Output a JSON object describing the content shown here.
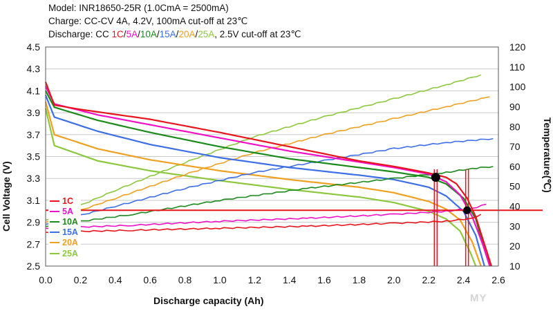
{
  "header": {
    "line1": "Model: INR18650-25R (1.0CmA = 2500mA)",
    "line2": "Charge: CC-CV 4A, 4.2V, 100mA cut-off at 23℃",
    "line3_prefix": "Discharge: CC ",
    "line3_suffix": ", 2.5V cut-off at 23℃",
    "rates": [
      "1C",
      "5A",
      "10A",
      "15A",
      "20A",
      "25A"
    ],
    "separator": "/"
  },
  "watermark": "MY",
  "colors": {
    "1C": "#e8141c",
    "5A": "#f010c8",
    "10A": "#1a8a1a",
    "15A": "#3c6ee6",
    "20A": "#f0a020",
    "25A": "#8cc83c"
  },
  "chart_data": {
    "type": "line",
    "xlabel": "Discharge capacity (Ah)",
    "ylabel": "Cell Voltage (V)",
    "y2label": "Temperature(℃)",
    "xlim": [
      0,
      2.6
    ],
    "ylim": [
      2.5,
      4.5
    ],
    "y2lim": [
      10,
      120
    ],
    "x_ticks": [
      "0.0",
      "0.2",
      "0.4",
      "0.6",
      "0.8",
      "1.0",
      "1.2",
      "1.4",
      "1.6",
      "1.8",
      "2.0",
      "2.2",
      "2.4",
      "2.6"
    ],
    "y_ticks": [
      "2.5",
      "2.7",
      "2.9",
      "3.1",
      "3.3",
      "3.5",
      "3.7",
      "3.9",
      "4.1",
      "4.3",
      "4.5"
    ],
    "y2_ticks": [
      "10",
      "20",
      "30",
      "40",
      "50",
      "60",
      "70",
      "80",
      "90",
      "100",
      "110",
      "120"
    ],
    "legend": [
      "1C",
      "5A",
      "10A",
      "15A",
      "20A",
      "25A"
    ],
    "legend_position": "bottom-left",
    "series": [
      {
        "name": "1C",
        "color": "#e8141c",
        "voltage": [
          [
            0,
            4.18
          ],
          [
            0.05,
            3.97
          ],
          [
            0.2,
            3.93
          ],
          [
            0.6,
            3.84
          ],
          [
            1.0,
            3.72
          ],
          [
            1.4,
            3.59
          ],
          [
            1.8,
            3.46
          ],
          [
            2.0,
            3.41
          ],
          [
            2.2,
            3.35
          ],
          [
            2.3,
            3.31
          ],
          [
            2.36,
            3.25
          ],
          [
            2.42,
            3.12
          ],
          [
            2.47,
            2.95
          ],
          [
            2.52,
            2.7
          ],
          [
            2.56,
            2.5
          ]
        ],
        "temperature": [
          [
            0,
            27
          ],
          [
            0.5,
            28
          ],
          [
            1.0,
            29
          ],
          [
            1.5,
            30
          ],
          [
            2.0,
            31.5
          ],
          [
            2.3,
            32.5
          ],
          [
            2.45,
            34
          ],
          [
            2.5,
            36
          ]
        ]
      },
      {
        "name": "5A",
        "color": "#f010c8",
        "voltage": [
          [
            0,
            4.14
          ],
          [
            0.05,
            3.98
          ],
          [
            0.3,
            3.88
          ],
          [
            0.7,
            3.76
          ],
          [
            1.0,
            3.67
          ],
          [
            1.4,
            3.55
          ],
          [
            1.8,
            3.45
          ],
          [
            2.0,
            3.4
          ],
          [
            2.2,
            3.34
          ],
          [
            2.3,
            3.27
          ],
          [
            2.38,
            3.15
          ],
          [
            2.45,
            2.95
          ],
          [
            2.51,
            2.7
          ],
          [
            2.55,
            2.5
          ]
        ],
        "temperature": [
          [
            0,
            29
          ],
          [
            0.5,
            30.5
          ],
          [
            1.0,
            32.5
          ],
          [
            1.5,
            34
          ],
          [
            2.0,
            36
          ],
          [
            2.3,
            37.5
          ],
          [
            2.45,
            39
          ],
          [
            2.53,
            41
          ]
        ]
      },
      {
        "name": "10A",
        "color": "#1a8a1a",
        "voltage": [
          [
            0,
            4.1
          ],
          [
            0.05,
            3.95
          ],
          [
            0.3,
            3.83
          ],
          [
            0.6,
            3.72
          ],
          [
            1.0,
            3.59
          ],
          [
            1.4,
            3.48
          ],
          [
            1.8,
            3.4
          ],
          [
            2.0,
            3.36
          ],
          [
            2.2,
            3.31
          ],
          [
            2.3,
            3.25
          ],
          [
            2.4,
            3.12
          ],
          [
            2.47,
            2.93
          ],
          [
            2.53,
            2.6
          ],
          [
            2.56,
            2.5
          ]
        ],
        "temperature": [
          [
            0,
            30
          ],
          [
            0.5,
            36
          ],
          [
            1.0,
            43
          ],
          [
            1.5,
            49
          ],
          [
            2.0,
            54
          ],
          [
            2.3,
            57
          ],
          [
            2.45,
            59
          ],
          [
            2.57,
            60
          ]
        ]
      },
      {
        "name": "15A",
        "color": "#3c6ee6",
        "voltage": [
          [
            0,
            4.06
          ],
          [
            0.05,
            3.86
          ],
          [
            0.3,
            3.73
          ],
          [
            0.6,
            3.61
          ],
          [
            1.0,
            3.49
          ],
          [
            1.4,
            3.4
          ],
          [
            1.8,
            3.33
          ],
          [
            2.0,
            3.29
          ],
          [
            2.2,
            3.22
          ],
          [
            2.3,
            3.14
          ],
          [
            2.4,
            3.0
          ],
          [
            2.47,
            2.78
          ],
          [
            2.52,
            2.5
          ]
        ],
        "temperature": [
          [
            0,
            31
          ],
          [
            0.4,
            40
          ],
          [
            0.8,
            49
          ],
          [
            1.2,
            57
          ],
          [
            1.6,
            63
          ],
          [
            2.0,
            69
          ],
          [
            2.3,
            72
          ],
          [
            2.57,
            74
          ]
        ]
      },
      {
        "name": "20A",
        "color": "#f0a020",
        "voltage": [
          [
            0,
            4.0
          ],
          [
            0.05,
            3.7
          ],
          [
            0.3,
            3.57
          ],
          [
            0.6,
            3.47
          ],
          [
            1.0,
            3.37
          ],
          [
            1.4,
            3.29
          ],
          [
            1.8,
            3.22
          ],
          [
            2.0,
            3.17
          ],
          [
            2.2,
            3.09
          ],
          [
            2.3,
            3.02
          ],
          [
            2.38,
            2.92
          ],
          [
            2.45,
            2.72
          ],
          [
            2.5,
            2.5
          ]
        ],
        "temperature": [
          [
            0,
            32
          ],
          [
            0.4,
            44
          ],
          [
            0.8,
            56
          ],
          [
            1.2,
            67
          ],
          [
            1.6,
            76
          ],
          [
            2.0,
            84
          ],
          [
            2.3,
            90
          ],
          [
            2.55,
            95
          ]
        ]
      },
      {
        "name": "25A",
        "color": "#8cc83c",
        "voltage": [
          [
            0,
            3.94
          ],
          [
            0.05,
            3.6
          ],
          [
            0.3,
            3.46
          ],
          [
            0.6,
            3.37
          ],
          [
            1.0,
            3.28
          ],
          [
            1.4,
            3.2
          ],
          [
            1.8,
            3.13
          ],
          [
            2.0,
            3.08
          ],
          [
            2.2,
            3.0
          ],
          [
            2.3,
            2.93
          ],
          [
            2.38,
            2.82
          ],
          [
            2.44,
            2.62
          ],
          [
            2.47,
            2.5
          ]
        ],
        "temperature": [
          [
            0,
            33
          ],
          [
            0.4,
            48
          ],
          [
            0.8,
            62
          ],
          [
            1.2,
            75
          ],
          [
            1.6,
            85
          ],
          [
            2.0,
            94
          ],
          [
            2.3,
            101
          ],
          [
            2.5,
            106
          ]
        ]
      }
    ],
    "markers": [
      {
        "x": 2.24,
        "voltage": 3.31
      },
      {
        "x": 2.42,
        "temperature": 38
      }
    ],
    "reference_lines": {
      "horizontal_temperature": 38,
      "vertical_x": [
        2.24,
        2.42
      ]
    }
  }
}
